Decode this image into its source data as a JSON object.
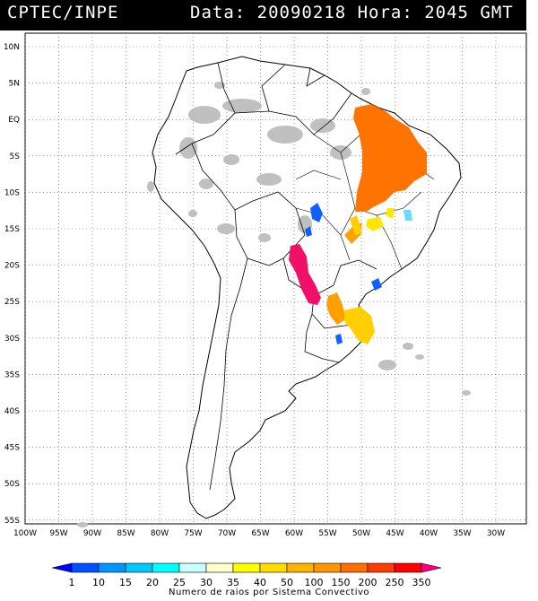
{
  "header": {
    "agency": "CPTEC/INPE",
    "timestamp": "Data: 20090218 Hora: 2045 GMT"
  },
  "lat_labels": [
    "10N",
    "5N",
    "EQ",
    "5S",
    "10S",
    "15S",
    "20S",
    "25S",
    "30S",
    "35S",
    "40S",
    "45S",
    "50S",
    "55S"
  ],
  "lon_labels": [
    "100W",
    "95W",
    "90W",
    "85W",
    "80W",
    "75W",
    "70W",
    "65W",
    "60W",
    "55W",
    "50W",
    "45W",
    "40W",
    "35W",
    "30W"
  ],
  "colorbar": {
    "labels": [
      "1",
      "10",
      "15",
      "20",
      "25",
      "30",
      "35",
      "40",
      "50",
      "100",
      "150",
      "200",
      "250",
      "350"
    ],
    "colors": [
      "#0000ff",
      "#0050ff",
      "#0096ff",
      "#00c8ff",
      "#00ffff",
      "#c8ffff",
      "#ffffc8",
      "#ffff00",
      "#ffdc00",
      "#ffb400",
      "#ff9600",
      "#ff6e00",
      "#ff3c00",
      "#ff0000",
      "#ff0080"
    ],
    "caption": "Numero de raios por Sistema Convectivo"
  },
  "colors": {
    "background": "#ffffff",
    "cloud": "#c0c0c0",
    "header": "#000000"
  }
}
